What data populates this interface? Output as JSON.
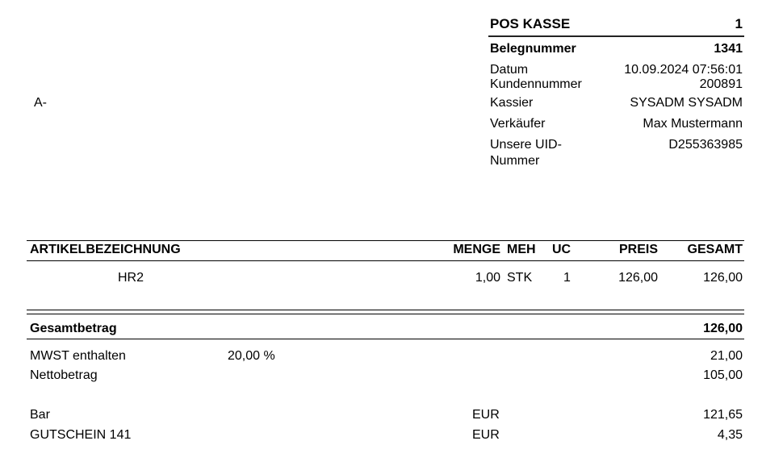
{
  "header": {
    "pos_label": "POS KASSE",
    "pos_number": "1",
    "receipt_label": "Belegnummer",
    "receipt_number": "1341",
    "fields": [
      {
        "label": "Datum",
        "value": "10.09.2024 07:56:01"
      },
      {
        "label": "Kundennummer",
        "value": "200891"
      },
      {
        "label": "Kassier",
        "value": "SYSADM SYSADM"
      },
      {
        "label": "Verkäufer",
        "value": "Max Mustermann"
      },
      {
        "label": "Unsere UID-",
        "label2": "Nummer",
        "value": "D255363985"
      }
    ]
  },
  "address": "A-",
  "table": {
    "columns": [
      "ARTIKELBEZEICHNUNG",
      "MENGE",
      "MEH",
      "UC",
      "PREIS",
      "GESAMT"
    ],
    "rows": [
      {
        "name": "HR2",
        "qty": "1,00",
        "unit": "STK",
        "uc": "1",
        "price": "126,00",
        "total": "126,00"
      }
    ]
  },
  "totals": {
    "total_label": "Gesamtbetrag",
    "total_value": "126,00",
    "vat_label": "MWST enthalten",
    "vat_rate": "20,00 %",
    "vat_value": "21,00",
    "net_label": "Nettobetrag",
    "net_value": "105,00"
  },
  "payments": [
    {
      "label": "Bar",
      "currency": "EUR",
      "amount": "121,65"
    },
    {
      "label": "GUTSCHEIN 141",
      "currency": "EUR",
      "amount": "4,35"
    }
  ]
}
